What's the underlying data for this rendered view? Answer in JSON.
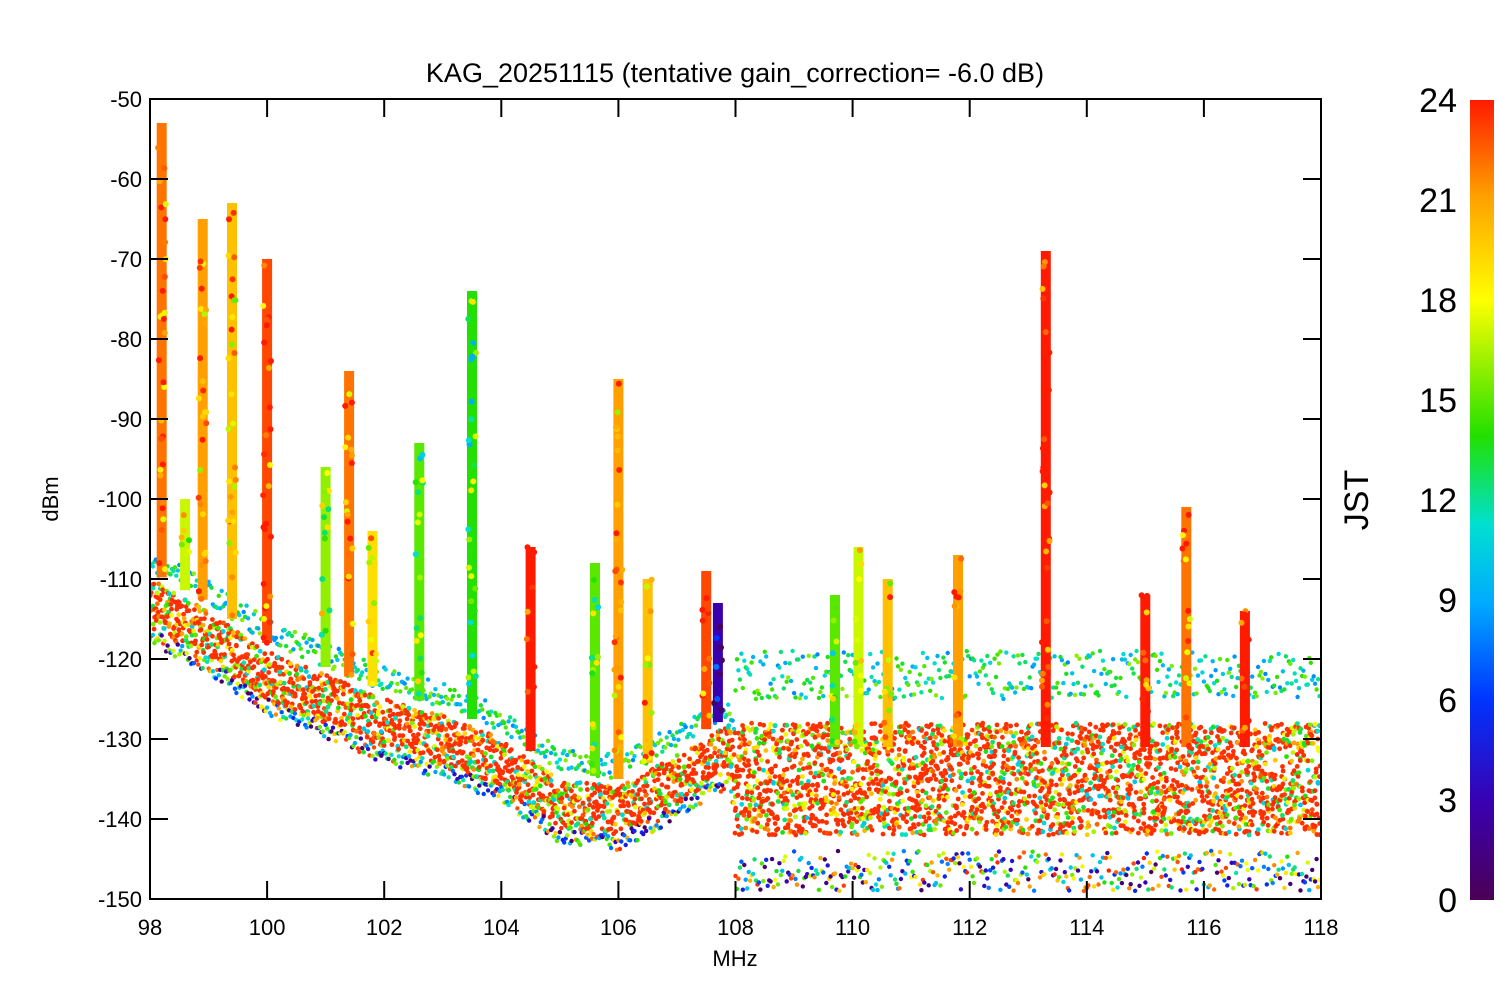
{
  "chart_data": {
    "type": "scatter",
    "title": "KAG_20251115 (tentative gain_correction= -6.0 dB)",
    "xlabel": "MHz",
    "ylabel": "dBm",
    "xlim": [
      98,
      118
    ],
    "ylim": [
      -150,
      -50
    ],
    "x_ticks": [
      "98",
      "100",
      "102",
      "104",
      "106",
      "108",
      "110",
      "112",
      "114",
      "116",
      "118"
    ],
    "y_ticks": [
      "-50",
      "-60",
      "-70",
      "-80",
      "-90",
      "-100",
      "-110",
      "-120",
      "-130",
      "-140",
      "-150"
    ],
    "colorbar": {
      "title": "JST",
      "range": [
        0,
        24
      ],
      "ticks": [
        "0",
        "3",
        "6",
        "9",
        "12",
        "15",
        "18",
        "21",
        "24"
      ]
    },
    "noise_floor": [
      {
        "x": 98.0,
        "y": -113
      },
      {
        "x": 99.0,
        "y": -117
      },
      {
        "x": 100.0,
        "y": -122
      },
      {
        "x": 101.0,
        "y": -125
      },
      {
        "x": 102.0,
        "y": -128
      },
      {
        "x": 103.0,
        "y": -130
      },
      {
        "x": 104.0,
        "y": -133
      },
      {
        "x": 105.0,
        "y": -138
      },
      {
        "x": 106.0,
        "y": -139
      },
      {
        "x": 107.0,
        "y": -135
      },
      {
        "x": 107.9,
        "y": -131
      },
      {
        "x": 108.0,
        "y": -135
      },
      {
        "x": 118.0,
        "y": -135
      }
    ],
    "signals": [
      {
        "freq": 98.2,
        "top": -53,
        "jst": 22
      },
      {
        "freq": 98.6,
        "top": -100,
        "jst": 17
      },
      {
        "freq": 98.9,
        "top": -65,
        "jst": 21
      },
      {
        "freq": 99.4,
        "top": -63,
        "jst": 20
      },
      {
        "freq": 100.0,
        "top": -70,
        "jst": 23
      },
      {
        "freq": 101.0,
        "top": -96,
        "jst": 16
      },
      {
        "freq": 101.4,
        "top": -84,
        "jst": 22
      },
      {
        "freq": 101.8,
        "top": -104,
        "jst": 19
      },
      {
        "freq": 102.6,
        "top": -93,
        "jst": 15
      },
      {
        "freq": 103.5,
        "top": -74,
        "jst": 14
      },
      {
        "freq": 104.5,
        "top": -106,
        "jst": 24
      },
      {
        "freq": 105.6,
        "top": -108,
        "jst": 15
      },
      {
        "freq": 106.0,
        "top": -85,
        "jst": 21
      },
      {
        "freq": 106.5,
        "top": -110,
        "jst": 20
      },
      {
        "freq": 107.5,
        "top": -109,
        "jst": 23
      },
      {
        "freq": 107.7,
        "top": -113,
        "jst": 3
      },
      {
        "freq": 109.7,
        "top": -112,
        "jst": 15
      },
      {
        "freq": 110.1,
        "top": -106,
        "jst": 17
      },
      {
        "freq": 110.6,
        "top": -110,
        "jst": 20
      },
      {
        "freq": 111.8,
        "top": -107,
        "jst": 21
      },
      {
        "freq": 113.3,
        "top": -69,
        "jst": 24
      },
      {
        "freq": 115.0,
        "top": -112,
        "jst": 24
      },
      {
        "freq": 115.7,
        "top": -101,
        "jst": 22
      },
      {
        "freq": 116.7,
        "top": -114,
        "jst": 24
      }
    ]
  }
}
